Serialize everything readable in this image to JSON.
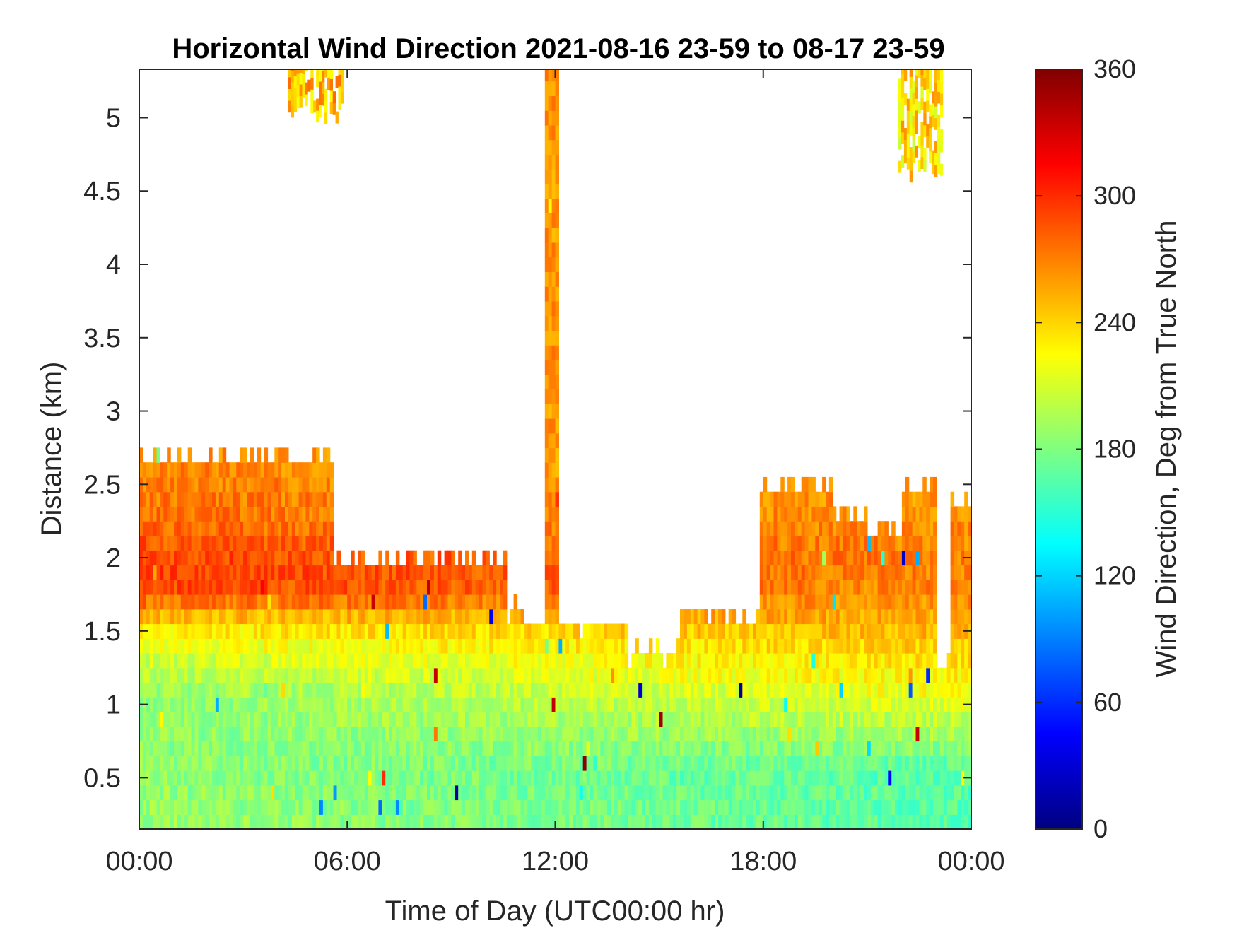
{
  "chart_data": {
    "type": "heatmap",
    "title": "Horizontal Wind Direction 2021-08-16 23-59 to 08-17 23-59",
    "xlabel": "Time of Day (UTC00:00 hr)",
    "ylabel": "Distance (km)",
    "xlim": [
      0,
      24
    ],
    "ylim": [
      0.15,
      5.33
    ],
    "x_ticks": [
      "00:00",
      "06:00",
      "12:00",
      "18:00",
      "00:00"
    ],
    "y_ticks": [
      "0.5",
      "1",
      "1.5",
      "2",
      "2.5",
      "3",
      "3.5",
      "4",
      "4.5",
      "5"
    ],
    "colorbar": {
      "label": "Wind Direction, Deg from True North",
      "range": [
        0,
        360
      ],
      "colormap": "jet",
      "ticks": [
        "0",
        "60",
        "120",
        "180",
        "240",
        "300",
        "360"
      ]
    },
    "value_units": "degrees",
    "background": "#ffffff",
    "data_top_km_by_hour": [
      {
        "time_hr": 0.0,
        "top_km": 2.65
      },
      {
        "time_hr": 5.4,
        "top_km": 2.65
      },
      {
        "time_hr": 5.5,
        "top_km": 1.95
      },
      {
        "time_hr": 9.0,
        "top_km": 1.95
      },
      {
        "time_hr": 10.5,
        "top_km": 1.6
      },
      {
        "time_hr": 11.0,
        "top_km": 1.5
      },
      {
        "time_hr": 11.7,
        "top_km": 5.33
      },
      {
        "time_hr": 12.0,
        "top_km": 1.5
      },
      {
        "time_hr": 14.0,
        "top_km": 1.3
      },
      {
        "time_hr": 15.5,
        "top_km": 1.6
      },
      {
        "time_hr": 17.0,
        "top_km": 1.6
      },
      {
        "time_hr": 17.8,
        "top_km": 2.45
      },
      {
        "time_hr": 20.0,
        "top_km": 2.25
      },
      {
        "time_hr": 21.0,
        "top_km": 2.15
      },
      {
        "time_hr": 22.0,
        "top_km": 2.45
      },
      {
        "time_hr": 23.0,
        "top_km": 1.2
      },
      {
        "time_hr": 23.4,
        "top_km": 2.35
      },
      {
        "time_hr": 24.0,
        "top_km": 2.35
      }
    ],
    "direction_deg_by_height_km": [
      {
        "height_km": 0.15,
        "deg_early": 190,
        "deg_late": 165
      },
      {
        "height_km": 0.5,
        "deg_early": 185,
        "deg_late": 165
      },
      {
        "height_km": 1.0,
        "deg_early": 185,
        "deg_late": 220
      },
      {
        "height_km": 1.3,
        "deg_early": 210,
        "deg_late": 240
      },
      {
        "height_km": 1.5,
        "deg_early": 235,
        "deg_late": 255
      },
      {
        "height_km": 1.7,
        "deg_early": 290,
        "deg_late": 265
      },
      {
        "height_km": 1.9,
        "deg_early": 295,
        "deg_late": 270
      },
      {
        "height_km": 2.2,
        "deg_early": 275,
        "deg_late": 265
      },
      {
        "height_km": 2.6,
        "deg_early": 268,
        "deg_late": 255
      }
    ],
    "upper_features": [
      {
        "time_start_hr": 4.3,
        "time_end_hr": 5.9,
        "bottom_km": 4.95,
        "top_km": 5.33,
        "deg": 250
      },
      {
        "time_start_hr": 21.9,
        "time_end_hr": 23.1,
        "bottom_km": 4.55,
        "top_km": 5.33,
        "deg": 235
      }
    ]
  }
}
